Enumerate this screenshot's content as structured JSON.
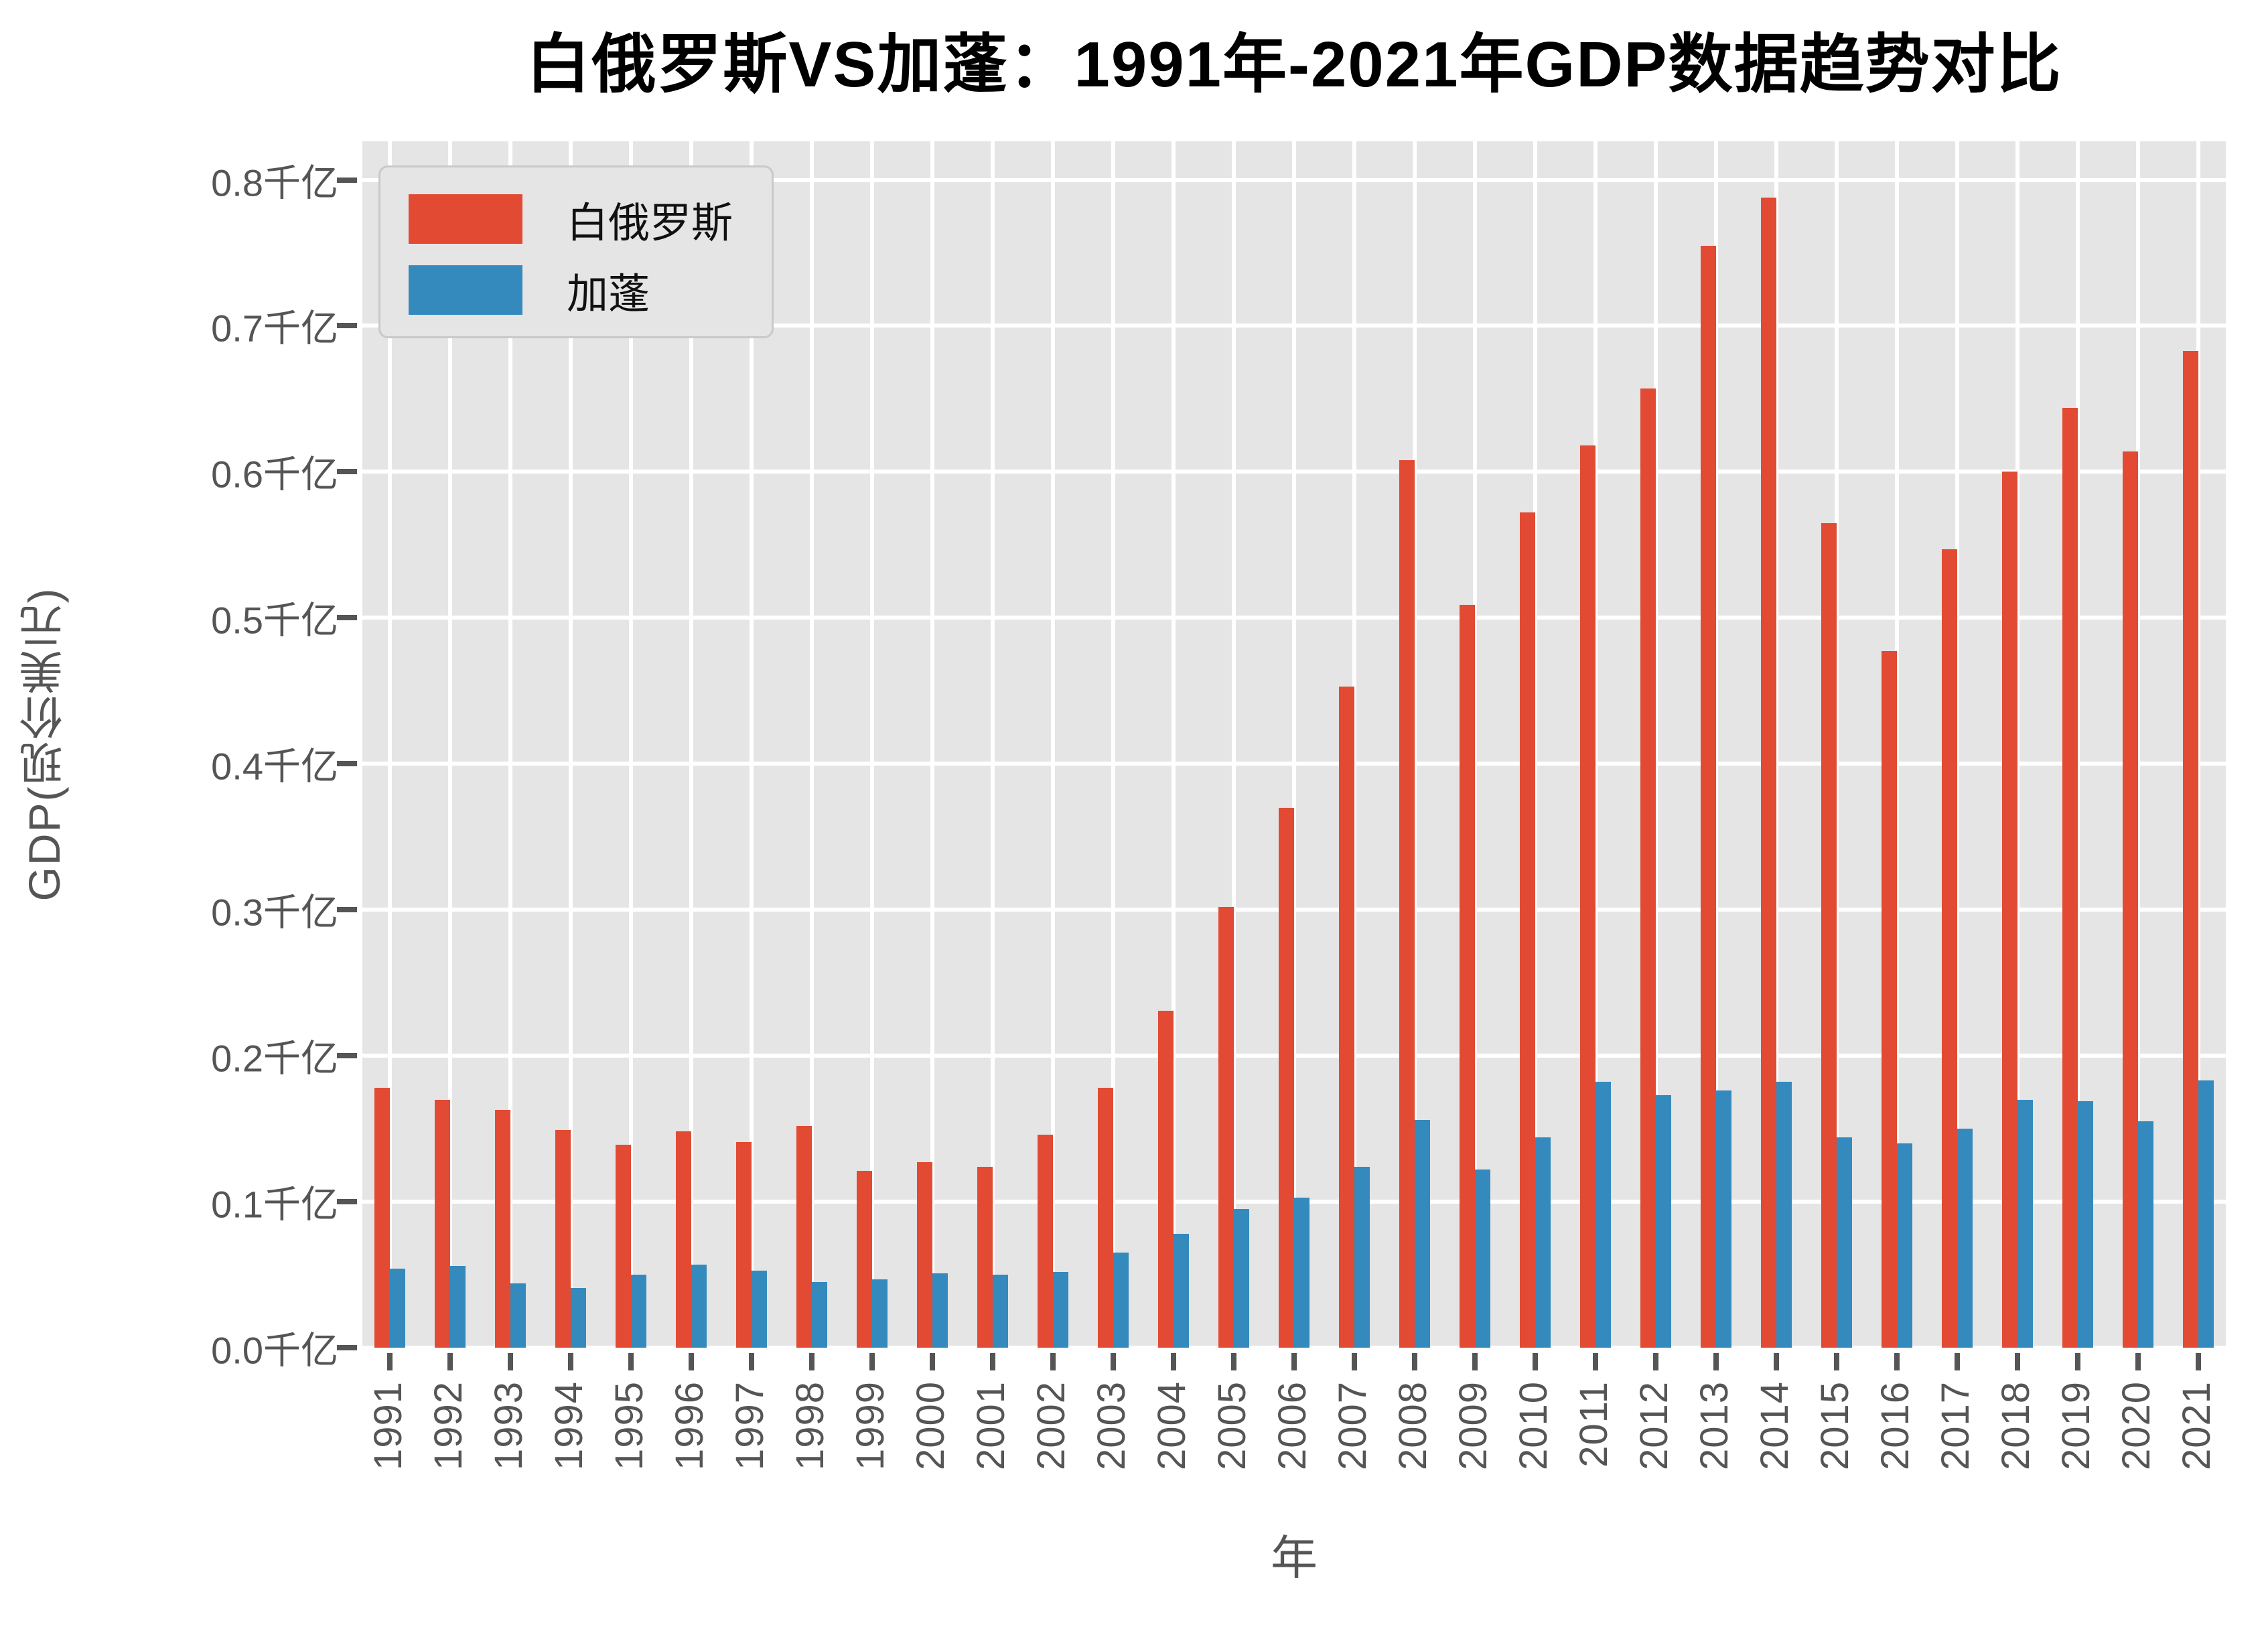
{
  "title": "白俄罗斯VS加蓬：1991年-2021年GDP数据趋势对比",
  "chart_data": {
    "type": "bar",
    "title": "白俄罗斯VS加蓬：1991年-2021年GDP数据趋势对比",
    "xlabel": "年",
    "ylabel": "GDP(现价美元)",
    "unit": "千亿",
    "categories": [
      "1991",
      "1992",
      "1993",
      "1994",
      "1995",
      "1996",
      "1997",
      "1998",
      "1999",
      "2000",
      "2001",
      "2002",
      "2003",
      "2004",
      "2005",
      "2006",
      "2007",
      "2008",
      "2009",
      "2010",
      "2011",
      "2012",
      "2013",
      "2014",
      "2015",
      "2016",
      "2017",
      "2018",
      "2019",
      "2020",
      "2021"
    ],
    "series": [
      {
        "name": "白俄罗斯",
        "color": "#E24A33",
        "values": [
          0.178,
          0.17,
          0.163,
          0.149,
          0.139,
          0.148,
          0.141,
          0.152,
          0.121,
          0.127,
          0.124,
          0.146,
          0.178,
          0.231,
          0.302,
          0.37,
          0.453,
          0.608,
          0.509,
          0.572,
          0.618,
          0.657,
          0.755,
          0.788,
          0.565,
          0.477,
          0.547,
          0.6,
          0.644,
          0.614,
          0.683
        ]
      },
      {
        "name": "加蓬",
        "color": "#348ABD",
        "values": [
          0.054,
          0.056,
          0.044,
          0.041,
          0.05,
          0.057,
          0.053,
          0.045,
          0.047,
          0.051,
          0.05,
          0.052,
          0.065,
          0.078,
          0.095,
          0.103,
          0.124,
          0.156,
          0.122,
          0.144,
          0.182,
          0.173,
          0.176,
          0.182,
          0.144,
          0.14,
          0.15,
          0.17,
          0.169,
          0.155,
          0.183
        ]
      }
    ],
    "yticks": [
      "0.0千亿",
      "0.1千亿",
      "0.2千亿",
      "0.3千亿",
      "0.4千亿",
      "0.5千亿",
      "0.6千亿",
      "0.7千亿",
      "0.8千亿"
    ],
    "ytick_values": [
      0.0,
      0.1,
      0.2,
      0.3,
      0.4,
      0.5,
      0.6,
      0.7,
      0.8
    ],
    "ylim": [
      0,
      0.8264
    ],
    "grid": true,
    "legend_position": "upper left"
  },
  "colors": {
    "plot_background": "#e5e5e5",
    "grid": "#ffffff",
    "tick_text": "#555555",
    "title_text": "#000000",
    "belarus": "#E24A33",
    "gabon": "#348ABD"
  }
}
